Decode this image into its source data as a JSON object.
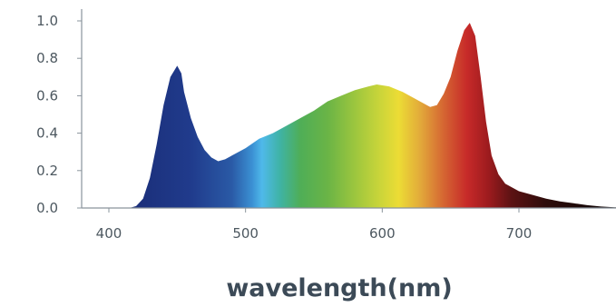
{
  "chart_data": {
    "type": "area",
    "title": "",
    "xlabel": "wavelength(nm)",
    "ylabel": "",
    "xlim": [
      380,
      780
    ],
    "ylim": [
      0,
      1.05
    ],
    "x_ticks": [
      400,
      500,
      600,
      700
    ],
    "y_ticks": [
      0.0,
      0.2,
      0.4,
      0.6,
      0.8,
      1.0
    ],
    "y_tick_labels": [
      "0.0",
      "0.2",
      "0.4",
      "0.6",
      "0.8",
      "1.0"
    ],
    "grid": false,
    "series": [
      {
        "x": [
          400,
          415,
          420,
          425,
          430,
          435,
          440,
          445,
          450,
          453,
          455,
          460,
          465,
          470,
          475,
          480,
          485,
          490,
          500,
          510,
          520,
          530,
          540,
          550,
          560,
          570,
          580,
          590,
          596,
          605,
          615,
          625,
          635,
          640,
          645,
          650,
          655,
          660,
          664,
          668,
          672,
          676,
          680,
          685,
          690,
          700,
          710,
          720,
          730,
          740,
          750,
          760,
          770,
          780
        ],
        "y": [
          0.0,
          0.0,
          0.01,
          0.05,
          0.16,
          0.34,
          0.55,
          0.7,
          0.76,
          0.72,
          0.62,
          0.48,
          0.38,
          0.31,
          0.27,
          0.25,
          0.26,
          0.28,
          0.32,
          0.37,
          0.4,
          0.44,
          0.48,
          0.52,
          0.57,
          0.6,
          0.63,
          0.65,
          0.66,
          0.65,
          0.62,
          0.58,
          0.54,
          0.55,
          0.61,
          0.7,
          0.84,
          0.95,
          0.99,
          0.92,
          0.7,
          0.46,
          0.28,
          0.18,
          0.13,
          0.09,
          0.07,
          0.05,
          0.035,
          0.025,
          0.015,
          0.008,
          0.004,
          0.0
        ]
      }
    ],
    "spectrum_colors": [
      {
        "nm": 420,
        "color": "#1b2f7a"
      },
      {
        "nm": 460,
        "color": "#203b8c"
      },
      {
        "nm": 490,
        "color": "#2a5aa6"
      },
      {
        "nm": 505,
        "color": "#3b91d4"
      },
      {
        "nm": 512,
        "color": "#4fb9ea"
      },
      {
        "nm": 525,
        "color": "#3fb3a6"
      },
      {
        "nm": 540,
        "color": "#4fae57"
      },
      {
        "nm": 560,
        "color": "#6ab446"
      },
      {
        "nm": 580,
        "color": "#9cc63e"
      },
      {
        "nm": 597,
        "color": "#c7d43a"
      },
      {
        "nm": 612,
        "color": "#ecdc35"
      },
      {
        "nm": 628,
        "color": "#e2a93a"
      },
      {
        "nm": 645,
        "color": "#d56532"
      },
      {
        "nm": 662,
        "color": "#c72a29"
      },
      {
        "nm": 678,
        "color": "#9c1b1e"
      },
      {
        "nm": 695,
        "color": "#5a1213"
      },
      {
        "nm": 720,
        "color": "#2d0c0b"
      },
      {
        "nm": 760,
        "color": "#120606"
      }
    ]
  }
}
